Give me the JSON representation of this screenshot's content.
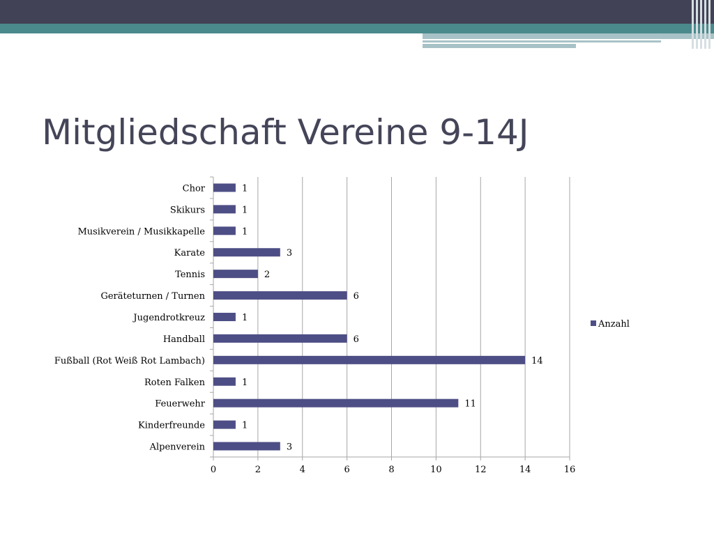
{
  "slide": {
    "title": "Mitgliedschaft Vereine 9-14J"
  },
  "colors": {
    "header_dark": "#424257",
    "header_teal": "#4b8a8c",
    "header_light": "#a7c2c7",
    "title": "#454559",
    "bar": "#4e4e86",
    "grid": "#a6a6a6"
  },
  "chart_data": {
    "type": "bar",
    "orientation": "horizontal",
    "title": "",
    "xlabel": "",
    "ylabel": "",
    "categories": [
      "Chor",
      "Skikurs",
      "Musikverein / Musikkapelle",
      "Karate",
      "Tennis",
      "Geräteturnen / Turnen",
      "Jugendrotkreuz",
      "Handball",
      "Fußball (Rot Weiß Rot Lambach)",
      "Roten Falken",
      "Feuerwehr",
      "Kinderfreunde",
      "Alpenverein"
    ],
    "series": [
      {
        "name": "Anzahl",
        "values": [
          1,
          1,
          1,
          3,
          2,
          6,
          1,
          6,
          14,
          1,
          11,
          1,
          3
        ]
      }
    ],
    "xlim": [
      0,
      16
    ],
    "xticks": [
      0,
      2,
      4,
      6,
      8,
      10,
      12,
      14,
      16
    ],
    "grid": "vertical",
    "legend_position": "right"
  }
}
